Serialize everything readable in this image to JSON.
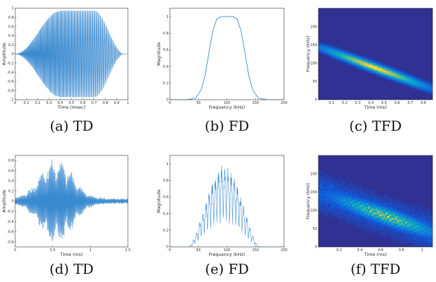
{
  "chart_data": [
    {
      "id": "a",
      "type": "line",
      "caption": "(a) TD",
      "xlabel": "Time (msec)",
      "ylabel": "Amplitude",
      "xlim": [
        0,
        1
      ],
      "ylim": [
        -1,
        1
      ],
      "xticks": [
        "0",
        "0.1",
        "0.2",
        "0.3",
        "0.4",
        "0.5",
        "0.6",
        "0.7",
        "0.8",
        "0.9",
        "1"
      ],
      "yticks": [
        "-1",
        "-0.8",
        "-0.6",
        "-0.4",
        "-0.2",
        "0",
        "0.2",
        "0.4",
        "0.6",
        "0.8",
        "1"
      ],
      "signal": {
        "kind": "chirp",
        "start": 0.0,
        "end": 0.97,
        "peak": 0.95,
        "envelope": "tukey",
        "cycles": 125
      },
      "line_color": "#3a8ad0"
    },
    {
      "id": "b",
      "type": "line",
      "caption": "(b) FD",
      "xlabel": "Frequency (kHz)",
      "ylabel": "Magnitude",
      "xlim": [
        0,
        200
      ],
      "ylim": [
        0,
        1.1
      ],
      "xticks": [
        "0",
        "50",
        "100",
        "150",
        "200"
      ],
      "yticks": [
        "0",
        "0.2",
        "0.4",
        "0.6",
        "0.8",
        "1"
      ],
      "x": [
        0,
        30,
        45,
        55,
        62,
        68,
        75,
        82,
        90,
        100,
        110,
        118,
        125,
        132,
        138,
        145,
        155,
        170,
        200
      ],
      "y": [
        0,
        0,
        0.02,
        0.12,
        0.3,
        0.55,
        0.82,
        0.97,
        1.0,
        1.0,
        1.0,
        0.97,
        0.82,
        0.55,
        0.3,
        0.12,
        0.02,
        0,
        0
      ],
      "line_color": "#3a8ad0"
    },
    {
      "id": "c",
      "type": "heatmap",
      "caption": "(c) TFD",
      "xlabel": "Time (ms)",
      "ylabel": "Frequency (kHz)",
      "xlim": [
        0,
        0.87
      ],
      "ylim": [
        0,
        250
      ],
      "xticks": [
        "0.1",
        "0.2",
        "0.3",
        "0.4",
        "0.5",
        "0.6",
        "0.7",
        "0.8"
      ],
      "yticks": [
        "0",
        "50",
        "100",
        "150",
        "200"
      ],
      "ridge": {
        "t0": 0.0,
        "f0": 145,
        "t1": 0.87,
        "f1": 30,
        "width_khz": 11,
        "peak_t": 0.43
      },
      "colormap": "parula"
    },
    {
      "id": "d",
      "type": "line",
      "caption": "(d) TD",
      "xlabel": "Time (ms)",
      "ylabel": "Amplitude",
      "xlim": [
        0,
        1.5
      ],
      "ylim": [
        -0.9,
        0.9
      ],
      "xticks": [
        "0",
        "0.5",
        "1",
        "1.5"
      ],
      "yticks": [
        "-0.8",
        "-0.6",
        "-0.4",
        "-0.2",
        "0",
        "0.2",
        "0.4",
        "0.6",
        "0.8"
      ],
      "signal": {
        "kind": "noisy-burst",
        "start": 0.0,
        "end": 1.5,
        "peak": 0.82,
        "center": 0.55,
        "width": 0.3,
        "cycles": 170
      },
      "line_color": "#3a8ad0"
    },
    {
      "id": "e",
      "type": "line",
      "caption": "(e) FD",
      "xlabel": "Frequency (kHz)",
      "ylabel": "Magnitude",
      "xlim": [
        0,
        200
      ],
      "ylim": [
        0,
        1.1
      ],
      "xticks": [
        "0",
        "50",
        "100",
        "150",
        "200"
      ],
      "yticks": [
        "0",
        "0.2",
        "0.4",
        "0.6",
        "0.8",
        "1"
      ],
      "signal": {
        "kind": "fringe-spectrum",
        "center": 95,
        "halfwidth": 62,
        "peak": 1.0,
        "fringe_period": 5.5
      },
      "line_color": "#3a8ad0"
    },
    {
      "id": "f",
      "type": "heatmap",
      "caption": "(f) TFD",
      "xlabel": "Time (ms)",
      "ylabel": "Frequency (kHz)",
      "xlim": [
        0,
        1.1
      ],
      "ylim": [
        0,
        250
      ],
      "xticks": [
        "0.2",
        "0.4",
        "0.6",
        "0.8",
        "1"
      ],
      "yticks": [
        "0",
        "50",
        "100",
        "150",
        "200"
      ],
      "ridge": {
        "t0": 0.0,
        "f0": 150,
        "t1": 1.1,
        "f1": 40,
        "width_khz": 20,
        "peak_t": 0.65,
        "speckle": true
      },
      "colormap": "parula"
    }
  ]
}
